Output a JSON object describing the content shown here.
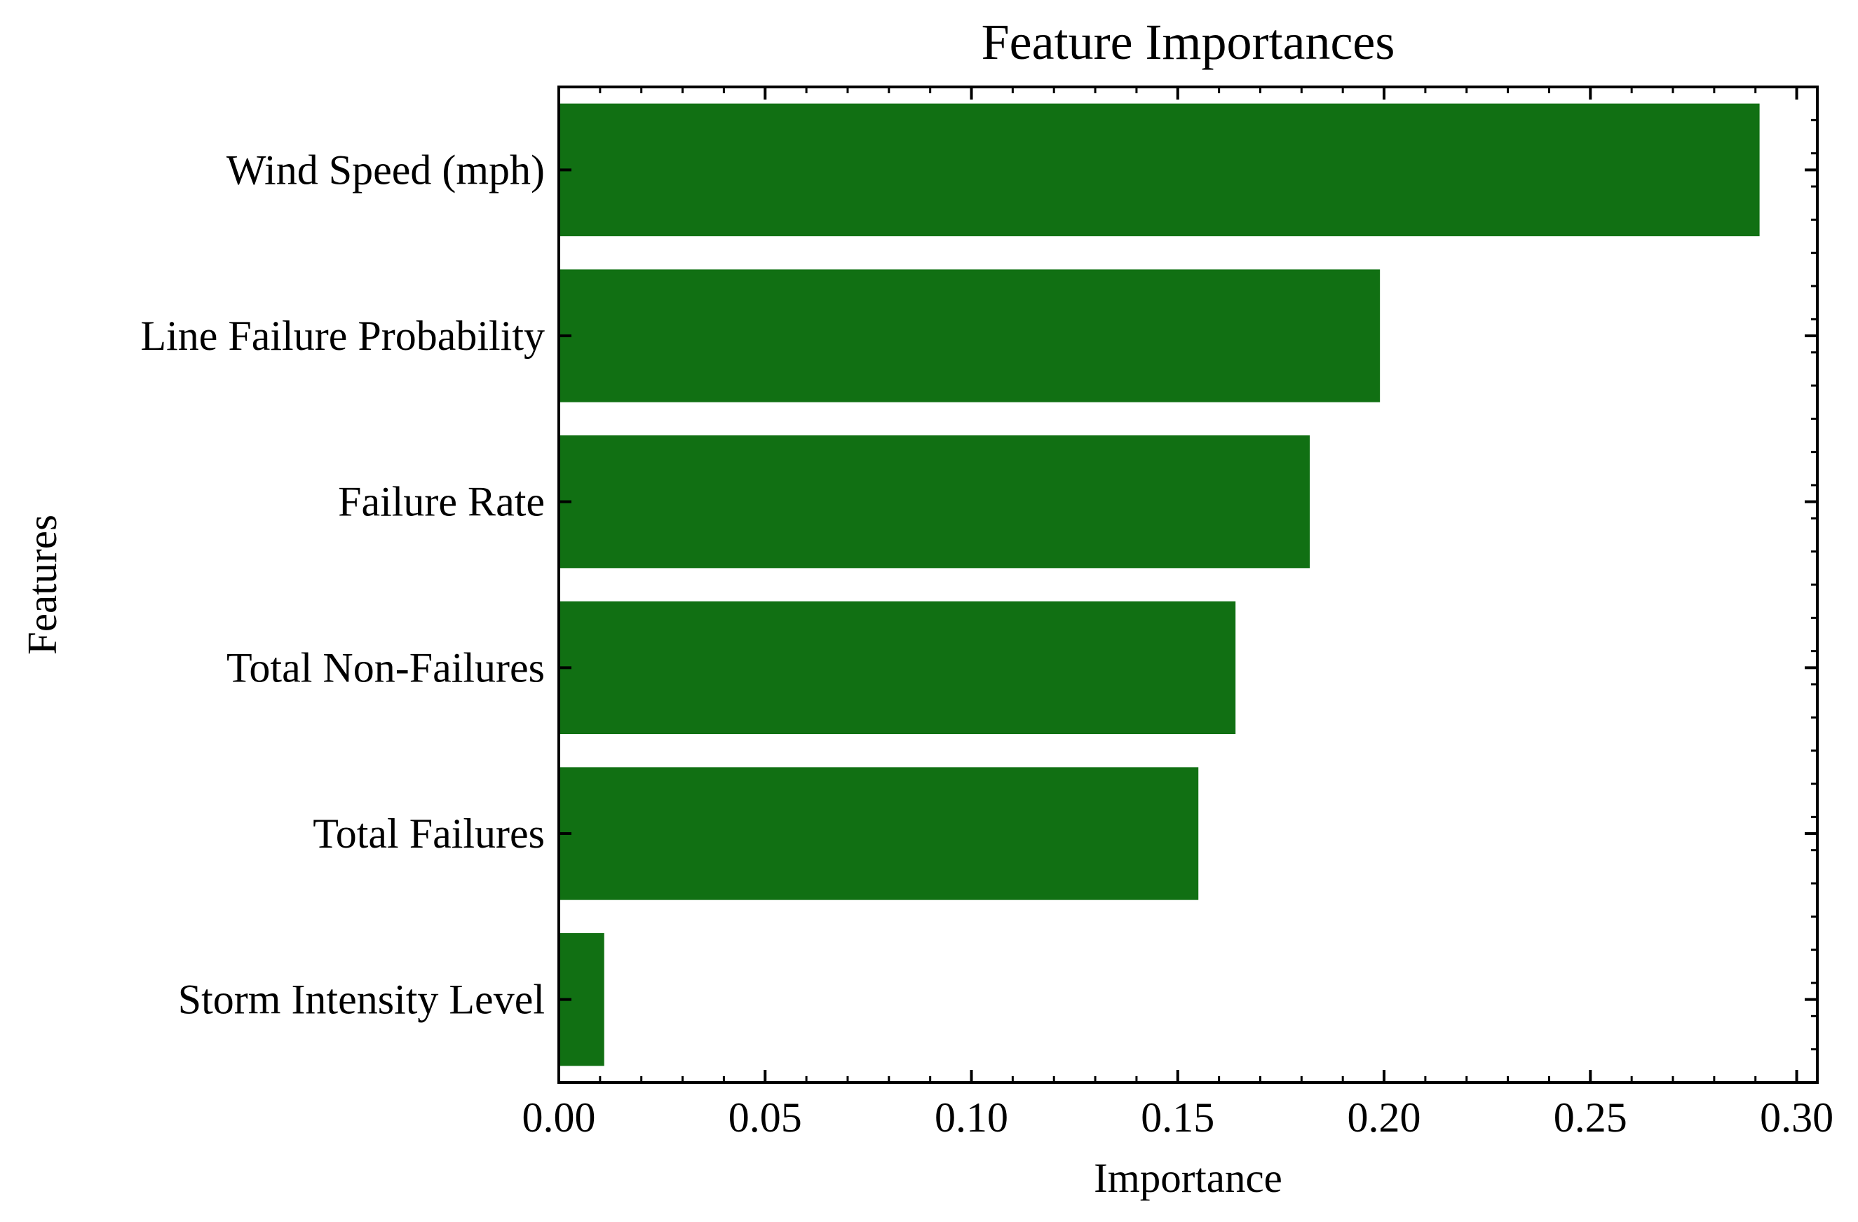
{
  "chart_data": {
    "type": "bar",
    "orientation": "horizontal",
    "title": "Feature Importances",
    "xlabel": "Importance",
    "ylabel": "Features",
    "categories": [
      "Wind Speed (mph)",
      "Line Failure Probability",
      "Failure Rate",
      "Total Non-Failures",
      "Total Failures",
      "Storm Intensity Level"
    ],
    "values": [
      0.291,
      0.199,
      0.182,
      0.164,
      0.155,
      0.011
    ],
    "xlim": [
      0.0,
      0.305
    ],
    "xticks": [
      "0.00",
      "0.05",
      "0.10",
      "0.15",
      "0.20",
      "0.25",
      "0.30"
    ],
    "grid": false,
    "colors": {
      "bar": "#117013",
      "axis": "#000000",
      "background": "#ffffff"
    }
  }
}
